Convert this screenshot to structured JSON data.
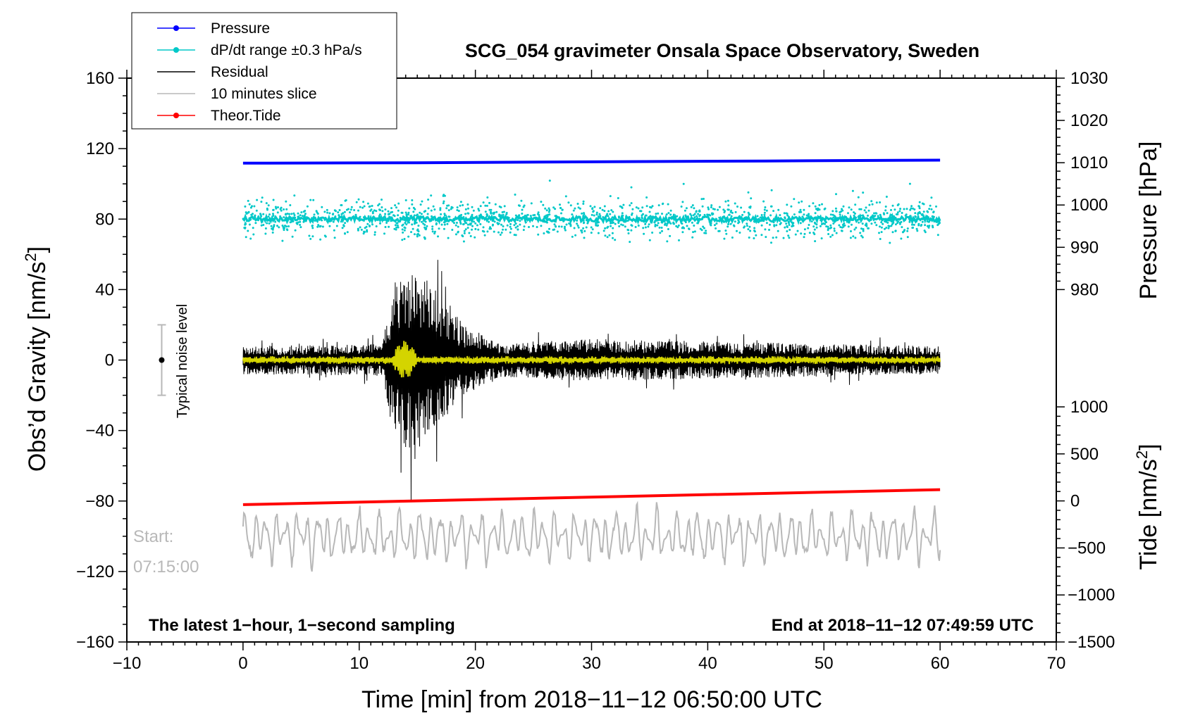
{
  "chart_data": {
    "type": "line",
    "title": "SCG_054 gravimeter Onsala Space Observatory, Sweden",
    "xlabel": "Time [min] from 2018−11−12 06:50:00 UTC",
    "ylabel_left": "Obs’d Gravity [nm/s",
    "ylabel_left_sup": "2",
    "ylabel_left_close": "]",
    "ylabel_right_pressure": "Pressure [hPa]",
    "ylabel_right_tide": "Tide [nm/s",
    "ylabel_right_tide_sup": "2",
    "ylabel_right_tide_close": "]",
    "xlim": [
      -10,
      70
    ],
    "ylim": [
      -160,
      160
    ],
    "pressure_lim": [
      980,
      1030
    ],
    "tide_lim": [
      -1500,
      1000
    ],
    "x_ticks": [
      "−10",
      "0",
      "10",
      "20",
      "30",
      "40",
      "50",
      "60",
      "70"
    ],
    "y_ticks": [
      "−160",
      "−120",
      "−80",
      "−40",
      "0",
      "40",
      "80",
      "120",
      "160"
    ],
    "pressure_ticks": [
      "980",
      "990",
      "1000",
      "1010",
      "1020",
      "1030"
    ],
    "tide_ticks": [
      "−1500",
      "−1000",
      "−500",
      "0",
      "500",
      "1000"
    ],
    "note_left": "The latest 1−hour, 1−second sampling",
    "note_right": "End at 2018−11−12 07:49:59 UTC",
    "start_label": "Start:",
    "start_time": "07:15:00",
    "noise_label": "Typical noise level",
    "noise_level": 20,
    "legend": [
      {
        "label": "Pressure",
        "color": "#0000ff",
        "marker": true
      },
      {
        "label": "dP/dt range ±0.3 hPa/s",
        "color": "#00c8c8",
        "marker": true
      },
      {
        "label": "Residual",
        "color": "#000000",
        "marker": false
      },
      {
        "label": "10 minutes slice",
        "color": "#b8b8b8",
        "marker": false
      },
      {
        "label": "Theor.Tide",
        "color": "#ff0000",
        "marker": true
      }
    ],
    "series": [
      {
        "name": "Pressure",
        "axis": "pressure",
        "color": "#0000ff",
        "x": [
          0,
          15,
          30,
          45,
          60
        ],
        "values": [
          1009.9,
          1010.0,
          1010.2,
          1010.4,
          1010.6
        ]
      },
      {
        "name": "Theor.Tide",
        "axis": "tide",
        "color": "#ff0000",
        "x": [
          0,
          60
        ],
        "values": [
          -40,
          120
        ]
      },
      {
        "name": "dP/dt range ±0.3 hPa/s",
        "axis": "gravity",
        "color": "#00c8c8",
        "center": 80,
        "spread": 5
      },
      {
        "name": "Residual",
        "axis": "gravity",
        "color": "#000000",
        "center": 0,
        "envelope": [
          {
            "t": 0,
            "a": 8
          },
          {
            "t": 12,
            "a": 9
          },
          {
            "t": 13,
            "a": 45
          },
          {
            "t": 14.5,
            "a": 52
          },
          {
            "t": 16,
            "a": 45
          },
          {
            "t": 19,
            "a": 20
          },
          {
            "t": 22,
            "a": 10
          },
          {
            "t": 30,
            "a": 12
          },
          {
            "t": 60,
            "a": 8
          }
        ]
      },
      {
        "name": "Filtered",
        "axis": "gravity",
        "color": "#d4d400",
        "center": 0
      },
      {
        "name": "10 minutes slice",
        "axis": "gravity",
        "color": "#b8b8b8",
        "center": -100,
        "amplitude": 15
      }
    ]
  }
}
